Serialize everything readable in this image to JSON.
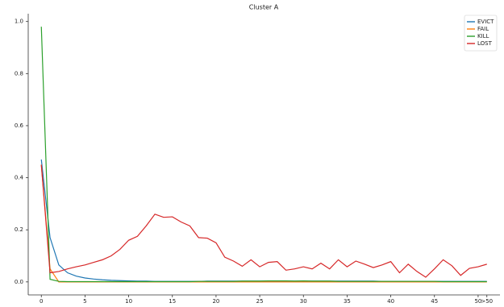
{
  "chart_data": {
    "type": "line",
    "title": "Cluster A",
    "x": [
      0,
      1,
      2,
      3,
      4,
      5,
      6,
      7,
      8,
      9,
      10,
      11,
      12,
      13,
      14,
      15,
      16,
      17,
      18,
      19,
      20,
      21,
      22,
      23,
      24,
      25,
      26,
      27,
      28,
      29,
      30,
      31,
      32,
      33,
      34,
      35,
      36,
      37,
      38,
      39,
      40,
      41,
      42,
      43,
      44,
      45,
      46,
      47,
      48,
      49,
      50,
      51
    ],
    "xlim": [
      -1.5,
      52.5
    ],
    "xticks": [
      0,
      5,
      10,
      15,
      20,
      25,
      30,
      35,
      40,
      45,
      50,
      {
        "value": 51,
        "label": ">50"
      }
    ],
    "ylim": [
      -0.05,
      1.03
    ],
    "yticks": [
      {
        "value": 0,
        "label": "0.0"
      },
      0.2,
      0.4,
      0.6,
      0.8,
      {
        "value": 1,
        "label": "1.0"
      }
    ],
    "grid": false,
    "legend": "upper right",
    "series": [
      {
        "name": "EVICT",
        "color": "#1f77b4",
        "values": [
          0.47,
          0.17,
          0.065,
          0.035,
          0.022,
          0.015,
          0.011,
          0.008,
          0.006,
          0.005,
          0.004,
          0.003,
          0.003,
          0.002,
          0.002,
          0.002,
          0.002,
          0.002,
          0.002,
          0.003,
          0.003,
          0.003,
          0.003,
          0.003,
          0.003,
          0.003,
          0.003,
          0.003,
          0.003,
          0.003,
          0.003,
          0.003,
          0.003,
          0.003,
          0.003,
          0.003,
          0.003,
          0.003,
          0.003,
          0.002,
          0.002,
          0.002,
          0.002,
          0.002,
          0.002,
          0.002,
          0.002,
          0.002,
          0.002,
          0.002,
          0.002,
          0.002
        ]
      },
      {
        "name": "FAIL",
        "color": "#ff7f0e",
        "values": [
          0.45,
          0.05,
          0.0,
          0.0,
          0.0,
          0.0,
          0.0,
          0.0,
          0.0,
          0.0,
          0.0,
          0.0,
          0.0,
          0.0,
          0.0,
          0.0,
          0.0,
          0.0,
          0.0,
          0.0,
          0.0,
          0.0,
          0.0,
          0.0,
          0.0,
          0.0,
          0.0,
          0.0,
          0.0,
          0.0,
          0.0,
          0.0,
          0.0,
          0.0,
          0.0,
          0.0,
          0.0,
          0.0,
          0.0,
          0.0,
          0.0,
          0.0,
          0.0,
          0.0,
          0.0,
          0.0,
          0.0,
          0.0,
          0.0,
          0.0,
          0.0,
          0.0
        ]
      },
      {
        "name": "KILL",
        "color": "#2ca02c",
        "values": [
          0.98,
          0.01,
          0.002,
          0.001,
          0.001,
          0.001,
          0.001,
          0.001,
          0.001,
          0.001,
          0.001,
          0.001,
          0.001,
          0.001,
          0.001,
          0.001,
          0.001,
          0.001,
          0.002,
          0.002,
          0.002,
          0.002,
          0.002,
          0.003,
          0.003,
          0.003,
          0.004,
          0.004,
          0.004,
          0.003,
          0.004,
          0.003,
          0.003,
          0.003,
          0.002,
          0.002,
          0.002,
          0.002,
          0.002,
          0.002,
          0.002,
          0.002,
          0.002,
          0.002,
          0.002,
          0.002,
          0.001,
          0.001,
          0.001,
          0.001,
          0.001,
          0.001
        ]
      },
      {
        "name": "LOST",
        "color": "#d62728",
        "values": [
          0.45,
          0.035,
          0.04,
          0.05,
          0.058,
          0.065,
          0.075,
          0.085,
          0.1,
          0.125,
          0.16,
          0.175,
          0.215,
          0.26,
          0.248,
          0.25,
          0.23,
          0.215,
          0.17,
          0.168,
          0.15,
          0.095,
          0.08,
          0.06,
          0.085,
          0.058,
          0.075,
          0.078,
          0.045,
          0.05,
          0.058,
          0.05,
          0.072,
          0.05,
          0.085,
          0.058,
          0.08,
          0.068,
          0.055,
          0.065,
          0.078,
          0.035,
          0.068,
          0.04,
          0.018,
          0.05,
          0.085,
          0.062,
          0.025,
          0.052,
          0.058,
          0.068
        ]
      }
    ]
  }
}
